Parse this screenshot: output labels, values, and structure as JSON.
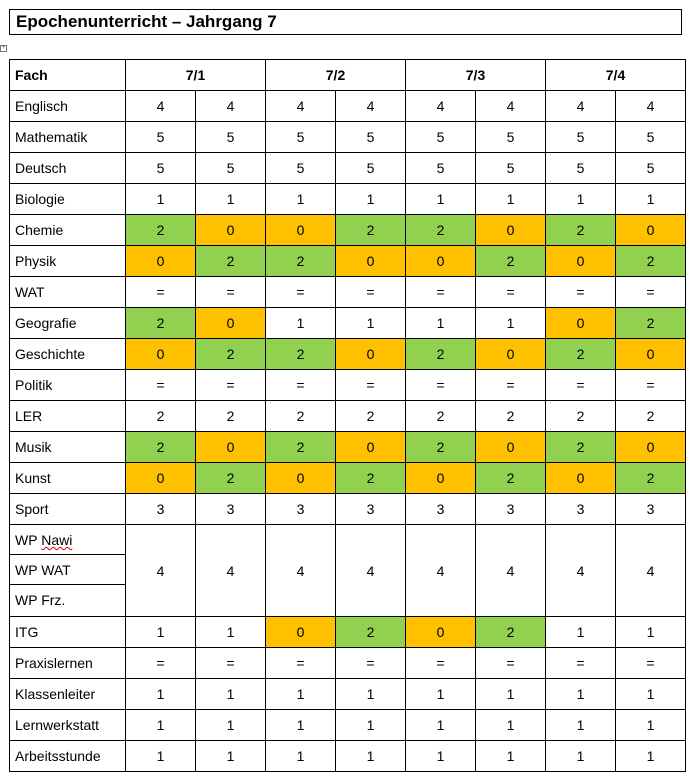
{
  "title": "Epochenunterricht – Jahrgang 7",
  "anchor_glyph": "+",
  "header": {
    "fach": "Fach",
    "classes": [
      "7/1",
      "7/2",
      "7/3",
      "7/4"
    ]
  },
  "colors": {
    "green": "#92d050",
    "orange": "#ffc000"
  },
  "rows": [
    {
      "fach": "Englisch",
      "values": [
        "4",
        "4",
        "4",
        "4",
        "4",
        "4",
        "4",
        "4"
      ],
      "colors": [
        "",
        "",
        "",
        "",
        "",
        "",
        "",
        ""
      ]
    },
    {
      "fach": "Mathematik",
      "values": [
        "5",
        "5",
        "5",
        "5",
        "5",
        "5",
        "5",
        "5"
      ],
      "colors": [
        "",
        "",
        "",
        "",
        "",
        "",
        "",
        ""
      ]
    },
    {
      "fach": "Deutsch",
      "values": [
        "5",
        "5",
        "5",
        "5",
        "5",
        "5",
        "5",
        "5"
      ],
      "colors": [
        "",
        "",
        "",
        "",
        "",
        "",
        "",
        ""
      ]
    },
    {
      "fach": "Biologie",
      "values": [
        "1",
        "1",
        "1",
        "1",
        "1",
        "1",
        "1",
        "1"
      ],
      "colors": [
        "",
        "",
        "",
        "",
        "",
        "",
        "",
        ""
      ]
    },
    {
      "fach": "Chemie",
      "values": [
        "2",
        "0",
        "0",
        "2",
        "2",
        "0",
        "2",
        "0"
      ],
      "colors": [
        "g",
        "o",
        "o",
        "g",
        "g",
        "o",
        "g",
        "o"
      ]
    },
    {
      "fach": "Physik",
      "values": [
        "0",
        "2",
        "2",
        "0",
        "0",
        "2",
        "0",
        "2"
      ],
      "colors": [
        "o",
        "g",
        "g",
        "o",
        "o",
        "g",
        "o",
        "g"
      ]
    },
    {
      "fach": "WAT",
      "values": [
        "=",
        "=",
        "=",
        "=",
        "=",
        "=",
        "=",
        "="
      ],
      "colors": [
        "",
        "",
        "",
        "",
        "",
        "",
        "",
        ""
      ]
    },
    {
      "fach": "Geografie",
      "values": [
        "2",
        "0",
        "1",
        "1",
        "1",
        "1",
        "0",
        "2"
      ],
      "colors": [
        "g",
        "o",
        "",
        "",
        "",
        "",
        "o",
        "g"
      ]
    },
    {
      "fach": "Geschichte",
      "values": [
        "0",
        "2",
        "2",
        "0",
        "2",
        "0",
        "2",
        "0"
      ],
      "colors": [
        "o",
        "g",
        "g",
        "o",
        "g",
        "o",
        "g",
        "o"
      ]
    },
    {
      "fach": "Politik",
      "values": [
        "=",
        "=",
        "=",
        "=",
        "=",
        "=",
        "=",
        "="
      ],
      "colors": [
        "",
        "",
        "",
        "",
        "",
        "",
        "",
        ""
      ]
    },
    {
      "fach": "LER",
      "values": [
        "2",
        "2",
        "2",
        "2",
        "2",
        "2",
        "2",
        "2"
      ],
      "colors": [
        "",
        "",
        "",
        "",
        "",
        "",
        "",
        ""
      ]
    },
    {
      "fach": "Musik",
      "values": [
        "2",
        "0",
        "2",
        "0",
        "2",
        "0",
        "2",
        "0"
      ],
      "colors": [
        "g",
        "o",
        "g",
        "o",
        "g",
        "o",
        "g",
        "o"
      ]
    },
    {
      "fach": "Kunst",
      "values": [
        "0",
        "2",
        "0",
        "2",
        "0",
        "2",
        "0",
        "2"
      ],
      "colors": [
        "o",
        "g",
        "o",
        "g",
        "o",
        "g",
        "o",
        "g"
      ]
    },
    {
      "fach": "Sport",
      "values": [
        "3",
        "3",
        "3",
        "3",
        "3",
        "3",
        "3",
        "3"
      ],
      "colors": [
        "",
        "",
        "",
        "",
        "",
        "",
        "",
        ""
      ]
    },
    {
      "fach_group": [
        "WP Nawi",
        "WP WAT",
        "WP Frz."
      ],
      "values": [
        "4",
        "4",
        "4",
        "4",
        "4",
        "4",
        "4",
        "4"
      ],
      "colors": [
        "",
        "",
        "",
        "",
        "",
        "",
        "",
        ""
      ]
    },
    {
      "fach": "ITG",
      "values": [
        "1",
        "1",
        "0",
        "2",
        "0",
        "2",
        "1",
        "1"
      ],
      "colors": [
        "",
        "",
        "o",
        "g",
        "o",
        "g",
        "",
        ""
      ]
    },
    {
      "fach": "Praxislernen",
      "values": [
        "=",
        "=",
        "=",
        "=",
        "=",
        "=",
        "=",
        "="
      ],
      "colors": [
        "",
        "",
        "",
        "",
        "",
        "",
        "",
        ""
      ]
    },
    {
      "fach": "Klassenleiter",
      "values": [
        "1",
        "1",
        "1",
        "1",
        "1",
        "1",
        "1",
        "1"
      ],
      "colors": [
        "",
        "",
        "",
        "",
        "",
        "",
        "",
        ""
      ]
    },
    {
      "fach": "Lernwerkstatt",
      "values": [
        "1",
        "1",
        "1",
        "1",
        "1",
        "1",
        "1",
        "1"
      ],
      "colors": [
        "",
        "",
        "",
        "",
        "",
        "",
        "",
        ""
      ]
    },
    {
      "fach": "Arbeitsstunde",
      "values": [
        "1",
        "1",
        "1",
        "1",
        "1",
        "1",
        "1",
        "1"
      ],
      "colors": [
        "",
        "",
        "",
        "",
        "",
        "",
        "",
        ""
      ]
    }
  ]
}
